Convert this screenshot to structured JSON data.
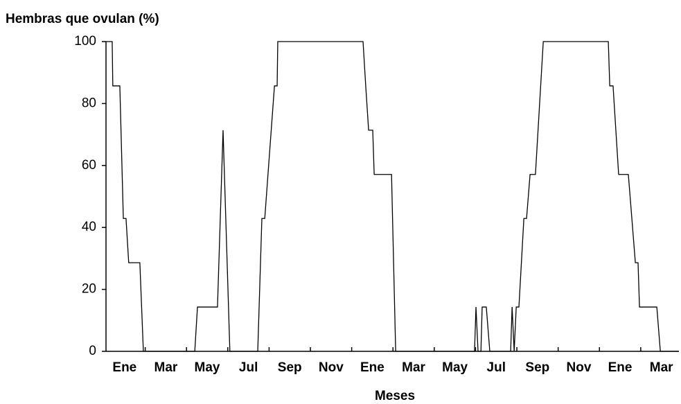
{
  "chart_data": {
    "type": "line",
    "title": "Hembras que ovulan (%)",
    "x_label": "Meses",
    "x": [
      0.1,
      0.4,
      0.43,
      0.77,
      0.94,
      1.07,
      1.2,
      1.74,
      1.91,
      4.4,
      4.53,
      5.5,
      5.77,
      6.1,
      7.45,
      7.65,
      7.79,
      8.26,
      8.39,
      8.42,
      12.55,
      12.68,
      12.82,
      13.02,
      13.09,
      13.93,
      14.13,
      17.95,
      18.02,
      18.12,
      18.26,
      18.32,
      18.52,
      18.69,
      19.7,
      19.77,
      19.87,
      19.97,
      20.1,
      20.34,
      20.47,
      20.64,
      20.9,
      21.28,
      24.43,
      24.5,
      24.66,
      24.93,
      25.4,
      25.57,
      25.74,
      25.87,
      25.94,
      26.78,
      26.95,
      27.85
    ],
    "series": [
      {
        "color": "#000000",
        "values": [
          100,
          100,
          85.7,
          85.7,
          42.9,
          42.9,
          28.6,
          28.6,
          0,
          0,
          14.3,
          14.3,
          71.4,
          0,
          0,
          42.9,
          42.9,
          85.7,
          85.7,
          100,
          100,
          85.7,
          71.4,
          71.4,
          57.1,
          57.1,
          0,
          0,
          14.3,
          0,
          0,
          14.3,
          14.3,
          0,
          0,
          14.3,
          0,
          14.3,
          14.3,
          42.9,
          42.9,
          57.1,
          57.1,
          100,
          100,
          85.7,
          85.7,
          57.1,
          57.1,
          42.9,
          28.6,
          28.6,
          14.3,
          14.3,
          0,
          0
        ]
      }
    ],
    "xlim": [
      0.1,
      27.85
    ],
    "ylim": [
      0,
      100
    ],
    "yticks": [
      0,
      20,
      40,
      60,
      80,
      100
    ],
    "xticks": [
      {
        "value": 1,
        "label": "Ene"
      },
      {
        "value": 3,
        "label": "Mar"
      },
      {
        "value": 5,
        "label": "May"
      },
      {
        "value": 7,
        "label": "Jul"
      },
      {
        "value": 9,
        "label": "Sep"
      },
      {
        "value": 11,
        "label": "Nov"
      },
      {
        "value": 13,
        "label": "Ene"
      },
      {
        "value": 15,
        "label": "Mar"
      },
      {
        "value": 17,
        "label": "May"
      },
      {
        "value": 19,
        "label": "Jul"
      },
      {
        "value": 21,
        "label": "Sep"
      },
      {
        "value": 23,
        "label": "Nov"
      },
      {
        "value": 25,
        "label": "Ene"
      },
      {
        "value": 27,
        "label": "Mar"
      }
    ],
    "xminorticks": [
      2,
      4,
      6,
      8,
      10,
      12,
      14,
      16,
      18,
      20,
      22,
      24,
      26
    ]
  }
}
